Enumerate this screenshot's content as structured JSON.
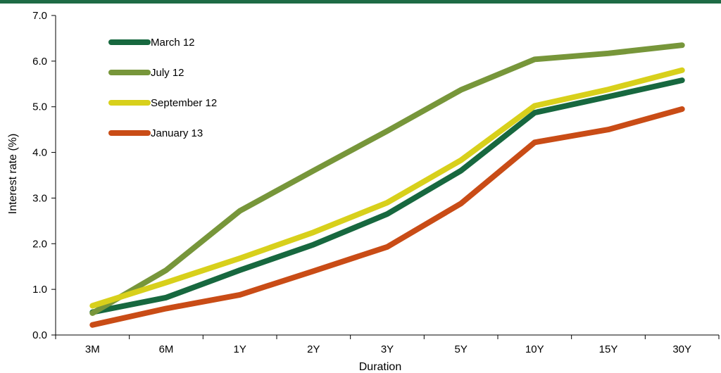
{
  "chart_data": {
    "type": "line",
    "xlabel": "Duration",
    "ylabel": "Interest rate (%)",
    "categories": [
      "3M",
      "6M",
      "1Y",
      "2Y",
      "3Y",
      "5Y",
      "10Y",
      "15Y",
      "30Y"
    ],
    "ylim": [
      0,
      7
    ],
    "yticks": [
      "0.0",
      "1.0",
      "2.0",
      "3.0",
      "4.0",
      "5.0",
      "6.0",
      "7.0"
    ],
    "grid": false,
    "legend_position": "top-left",
    "series": [
      {
        "name": "March 12",
        "color": "#17683f",
        "values": [
          0.5,
          0.82,
          1.42,
          1.98,
          2.65,
          3.6,
          4.87,
          5.22,
          5.58
        ]
      },
      {
        "name": "July 12",
        "color": "#77963a",
        "values": [
          0.48,
          1.42,
          2.72,
          3.6,
          4.47,
          5.37,
          6.04,
          6.17,
          6.35
        ]
      },
      {
        "name": "September 12",
        "color": "#d8d01b",
        "values": [
          0.64,
          1.15,
          1.68,
          2.25,
          2.9,
          3.83,
          5.02,
          5.38,
          5.8
        ]
      },
      {
        "name": "January 13",
        "color": "#c94c16",
        "values": [
          0.22,
          0.58,
          0.88,
          1.4,
          1.93,
          2.88,
          4.22,
          4.5,
          4.95
        ]
      }
    ]
  }
}
